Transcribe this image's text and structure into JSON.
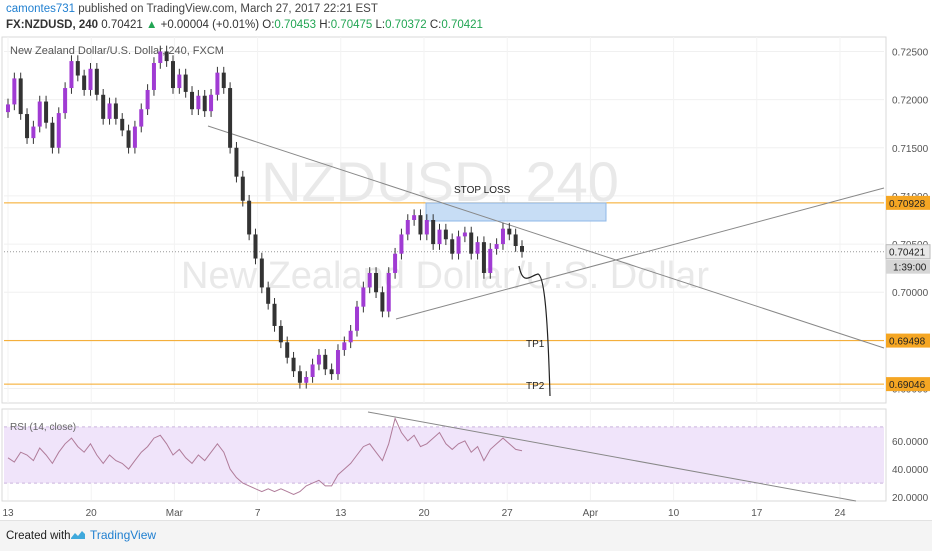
{
  "header": {
    "author": "camontes731",
    "published_text": "published on TradingView.com, March 27, 2017 22:21 EST",
    "symbol": "FX:NZDUSD, 240",
    "price": "0.70421",
    "change": "+0.00004 (+0.01%)",
    "ohlc_o_label": "O:",
    "ohlc_o": "0.70453",
    "ohlc_h_label": "H:",
    "ohlc_h": "0.70475",
    "ohlc_l_label": "L:",
    "ohlc_l": "0.70372",
    "ohlc_c_label": "C:",
    "ohlc_c": "0.70421"
  },
  "footer": {
    "created_with": "Created with",
    "brand": "TradingView"
  },
  "colors": {
    "up": "#a03bd3",
    "down": "#333333",
    "level": "#f5a623",
    "trend": "#888888",
    "stop_zone": "#c7ddf5",
    "rsi_band": "#f0e4fa",
    "label_bg": "#f5a623"
  },
  "chart_data": {
    "type": "candlestick",
    "title": "New Zealand Dollar/U.S. Dollar, 240, FXCM",
    "watermark_symbol": "NZDUSD, 240",
    "watermark_name": "New Zealand Dollar/U.S. Dollar",
    "y_ticks": [
      "0.72500",
      "0.72000",
      "0.71500",
      "0.71000",
      "0.70500",
      "0.70000",
      "0.69500",
      "0.69000"
    ],
    "ylim": [
      0.6885,
      0.7265
    ],
    "x_ticks": [
      "13",
      "20",
      "Mar",
      "7",
      "13",
      "20",
      "27",
      "Apr",
      "10",
      "17",
      "24"
    ],
    "levels": [
      {
        "value": 0.70928,
        "label": "0.70928"
      },
      {
        "value": 0.69498,
        "label": "0.69498"
      },
      {
        "value": 0.69046,
        "label": "0.69046"
      }
    ],
    "last_price": {
      "value": 0.70421,
      "label": "0.70421",
      "countdown": "1:39:00"
    },
    "annotations": {
      "stop_loss": "STOP LOSS",
      "tp1": "TP1",
      "tp2": "TP2"
    },
    "closes": [
      0.7195,
      0.7222,
      0.7185,
      0.716,
      0.7172,
      0.7198,
      0.7176,
      0.715,
      0.7186,
      0.7212,
      0.724,
      0.7225,
      0.721,
      0.7232,
      0.7205,
      0.718,
      0.7196,
      0.718,
      0.7168,
      0.715,
      0.7172,
      0.719,
      0.721,
      0.7238,
      0.725,
      0.724,
      0.7212,
      0.7226,
      0.7208,
      0.719,
      0.7204,
      0.7188,
      0.7205,
      0.7228,
      0.7212,
      0.715,
      0.712,
      0.7095,
      0.706,
      0.7035,
      0.7005,
      0.6988,
      0.6965,
      0.6948,
      0.6932,
      0.6918,
      0.6906,
      0.6912,
      0.6925,
      0.6935,
      0.692,
      0.6915,
      0.694,
      0.6948,
      0.696,
      0.6985,
      0.7005,
      0.702,
      0.7,
      0.698,
      0.702,
      0.704,
      0.706,
      0.7075,
      0.708,
      0.706,
      0.7075,
      0.705,
      0.7065,
      0.7055,
      0.704,
      0.7058,
      0.7062,
      0.704,
      0.7052,
      0.702,
      0.7045,
      0.705,
      0.7066,
      0.706,
      0.7048,
      0.7042
    ],
    "rsi": {
      "label": "RSI (14, close)",
      "y_ticks": [
        "60.0000",
        "40.0000",
        "20.0000"
      ],
      "ylim": [
        18,
        82
      ],
      "band": [
        30,
        70
      ],
      "values": [
        48,
        45,
        52,
        50,
        46,
        55,
        50,
        44,
        52,
        58,
        62,
        56,
        52,
        58,
        50,
        44,
        50,
        46,
        44,
        40,
        46,
        52,
        56,
        62,
        64,
        58,
        50,
        54,
        48,
        44,
        50,
        46,
        52,
        58,
        52,
        40,
        34,
        30,
        28,
        26,
        24,
        26,
        24,
        26,
        24,
        22,
        24,
        28,
        30,
        32,
        28,
        28,
        36,
        40,
        44,
        50,
        56,
        58,
        52,
        46,
        58,
        76,
        66,
        60,
        64,
        56,
        58,
        62,
        66,
        58,
        54,
        58,
        60,
        52,
        56,
        46,
        54,
        58,
        62,
        58,
        54,
        53
      ]
    }
  }
}
